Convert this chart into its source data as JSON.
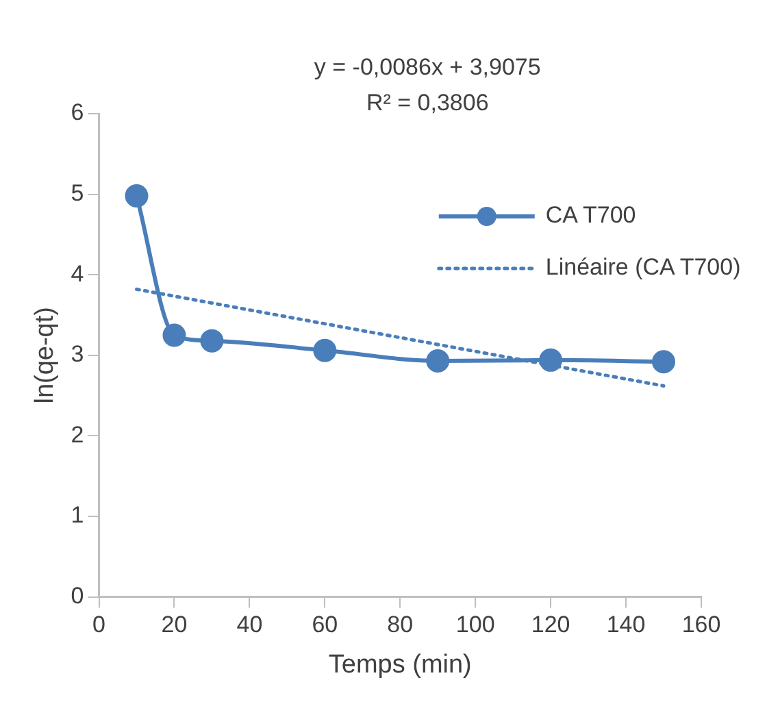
{
  "chart_data": {
    "type": "line",
    "xlabel": "Temps (min)",
    "ylabel": "ln(qe-qt)",
    "annotations": [
      "y = -0,0086x + 3,9075",
      "R² = 0,3806"
    ],
    "x": [
      10,
      20,
      30,
      60,
      90,
      120,
      150
    ],
    "series": [
      {
        "name": "CA T700",
        "color": "#4a7ebb",
        "values": [
          4.98,
          3.25,
          3.18,
          3.06,
          2.93,
          2.94,
          2.92
        ],
        "marker": "circle",
        "line_style": "solid"
      },
      {
        "name": "Linéaire (CA T700)",
        "color": "#4a7ebb",
        "x": [
          10,
          150
        ],
        "values": [
          3.82,
          2.62
        ],
        "marker": "none",
        "line_style": "dotted"
      }
    ],
    "xlim": [
      0,
      160
    ],
    "xticks": [
      0,
      20,
      40,
      60,
      80,
      100,
      120,
      140,
      160
    ],
    "ylim": [
      0,
      6
    ],
    "yticks": [
      0,
      1,
      2,
      3,
      4,
      5,
      6
    ],
    "grid": false,
    "legend": "top right"
  }
}
